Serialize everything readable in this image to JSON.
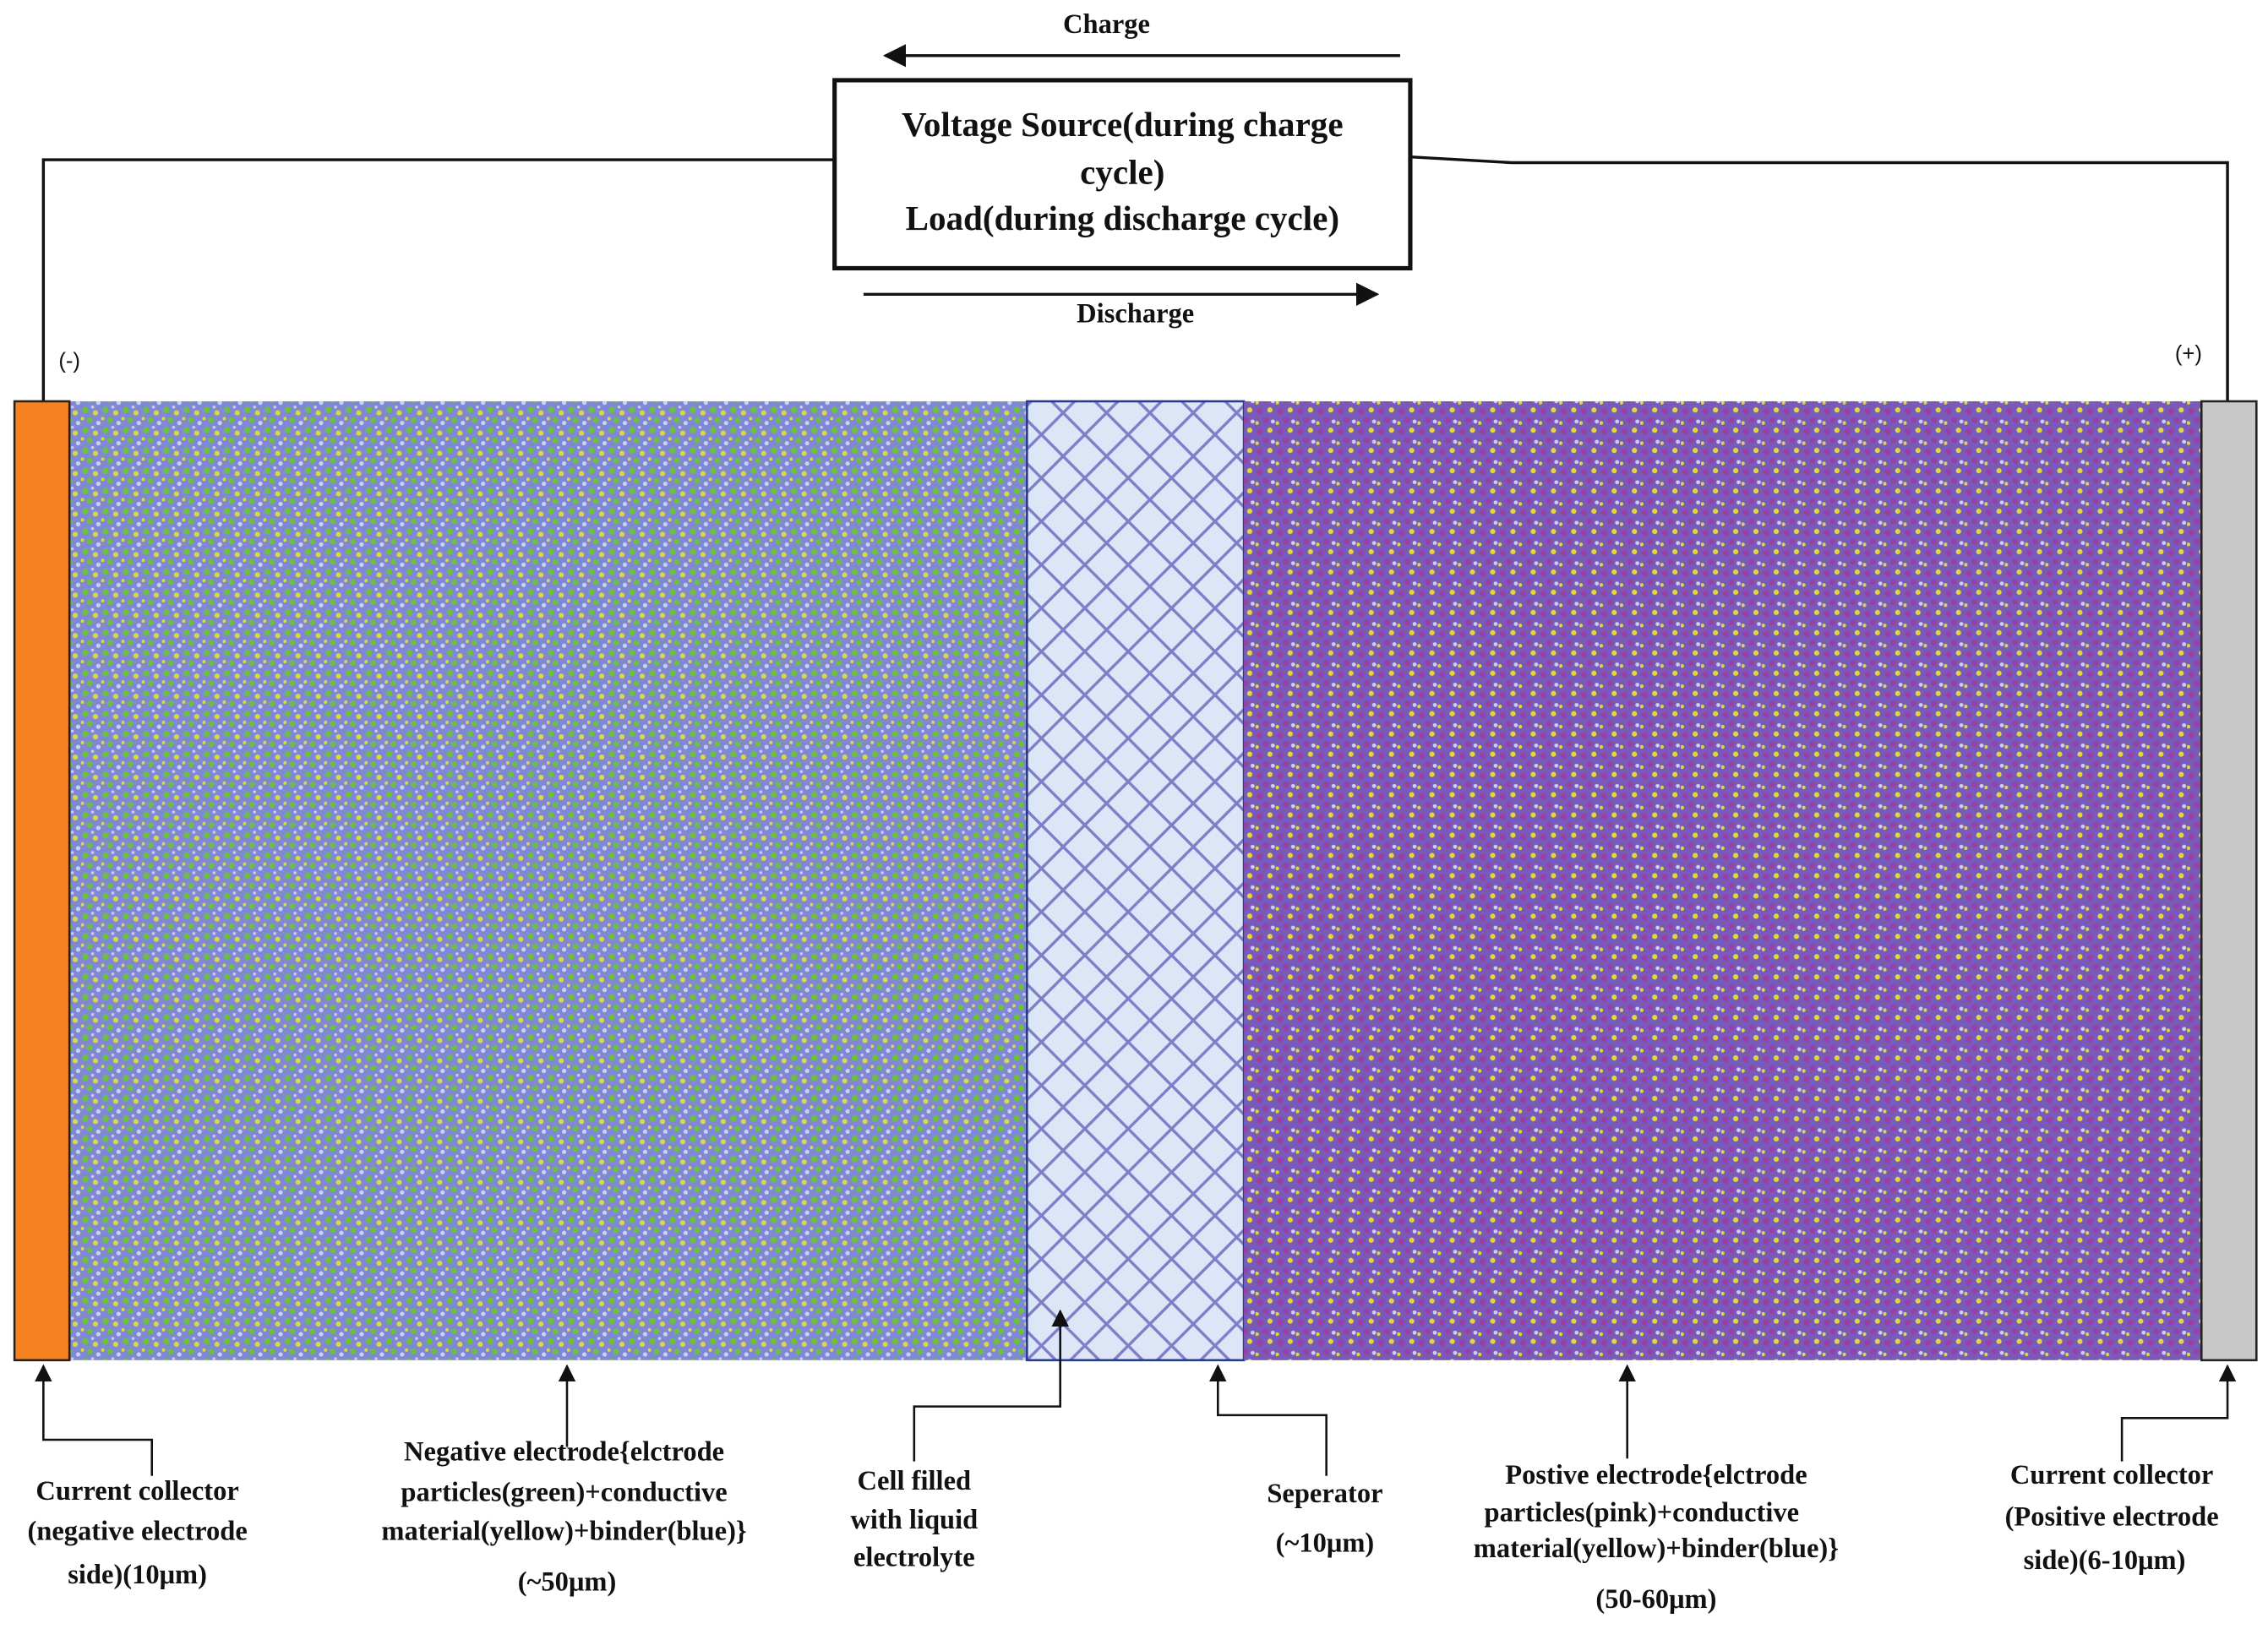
{
  "charge_label": "Charge",
  "discharge_label": "Discharge",
  "power_box": {
    "lines": [
      "Voltage Source(during charge",
      "cycle)",
      "Load(during discharge cycle)"
    ]
  },
  "negative_terminal": "(-)",
  "positive_terminal": "(+)",
  "labels": [
    {
      "lines": [
        "Current collector",
        "(negative electrode",
        "side)(10μm)"
      ]
    },
    {
      "lines": [
        "Negative electrode{elctrode",
        "particles(green)+conductive",
        "material(yellow)+binder(blue)}",
        "(~50μm)"
      ]
    },
    {
      "lines": [
        "Cell filled",
        "with liquid",
        "electrolyte"
      ]
    },
    {
      "lines": [
        "Seperator",
        "(~10μm)"
      ]
    },
    {
      "lines": [
        "Postive electrode{elctrode",
        "particles(pink)+conductive",
        "material(yellow)+binder(blue)}",
        "(50-60μm)"
      ]
    },
    {
      "lines": [
        "Current collector",
        "(Positive electrode",
        "side)(6-10μm)"
      ]
    }
  ]
}
